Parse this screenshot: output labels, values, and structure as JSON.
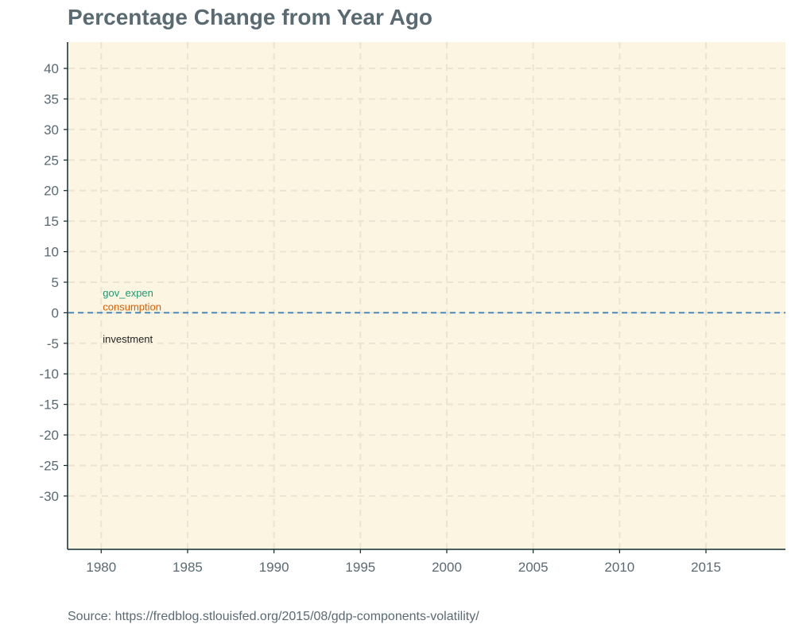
{
  "chart_data": {
    "type": "line",
    "title": "Percentage Change from Year Ago",
    "caption": "Source: https://fredblog.stlouisfed.org/2015/08/gdp-components-volatility/",
    "xlabel": "",
    "ylabel": "",
    "x_ticks": [
      1980,
      1985,
      1990,
      1995,
      2000,
      2005,
      2010,
      2015
    ],
    "y_ticks": [
      40,
      35,
      30,
      25,
      20,
      15,
      10,
      5,
      0,
      -5,
      -10,
      -15,
      -20,
      -25,
      -30
    ],
    "x_tick_labels": [
      "1980",
      "1985",
      "1990",
      "1995",
      "2000",
      "2005",
      "2010",
      "2015"
    ],
    "y_tick_labels": [
      "40",
      "35",
      "30",
      "25",
      "20",
      "15",
      "10",
      "5",
      "0",
      "-5",
      "-10",
      "-15",
      "-20",
      "-25",
      "-30"
    ],
    "xlim": [
      1978.1,
      2019.6
    ],
    "ylim": [
      -38.6,
      44.3
    ],
    "grid": true,
    "reference_line": {
      "y": 0,
      "style": "dashed",
      "color": "#3a7bb0"
    },
    "series": [
      {
        "name": "gov_expen",
        "color": "#1a9a72",
        "label_x": 1980,
        "label_y": 3.2,
        "values": []
      },
      {
        "name": "consumption",
        "color": "#d95f02",
        "label_x": 1980,
        "label_y": 0.9,
        "values": []
      },
      {
        "name": "investment",
        "color": "#222222",
        "label_x": 1980,
        "label_y": -4.4,
        "values": []
      }
    ],
    "colors": {
      "panel_background": "#fcf5e2",
      "grid": "#ece4d0",
      "axis": "#0e2a2c",
      "text": "#5a6a72"
    }
  }
}
